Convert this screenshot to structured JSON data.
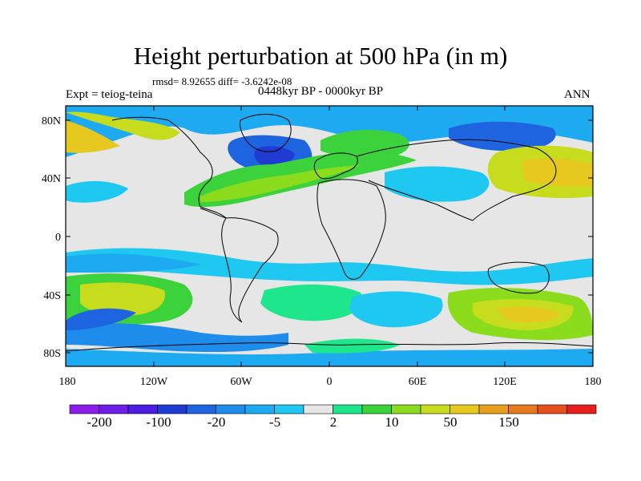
{
  "title": "Height perturbation at 500 hPa (in m)",
  "stats": "rmsd= 8.92655 diff= -3.6242e-08",
  "expt": "Expt = teiog-teina",
  "period": "0448kyr BP - 0000kyr BP",
  "season": "ANN",
  "lat_ticks": [
    "80N",
    "40N",
    "0",
    "40S",
    "80S"
  ],
  "lon_ticks": [
    "180",
    "120W",
    "60W",
    "0",
    "60E",
    "120E",
    "180"
  ],
  "colorbar": {
    "colors": [
      "#8c1eeb",
      "#6e1ee6",
      "#4b1ee1",
      "#1e3cd2",
      "#1e64e1",
      "#1e8ceb",
      "#1eaaf0",
      "#1ec8f0",
      "#e6e6e6",
      "#1ee68c",
      "#3cd23c",
      "#8cdc1e",
      "#c8dc1e",
      "#e6c81e",
      "#e6a01e",
      "#e67a1e",
      "#e6501e",
      "#e61e1e"
    ],
    "labels": [
      "-200",
      "-100",
      "-20",
      "-5",
      "2",
      "10",
      "50",
      "150"
    ]
  },
  "field_colors": {
    "neutral": "#e6e6e6",
    "pos1": "#1ee68c",
    "pos2": "#3cd23c",
    "pos3": "#8cdc1e",
    "pos4": "#c8dc1e",
    "pos5": "#e6c81e",
    "neg1": "#1ec8f0",
    "neg2": "#1eaaf0",
    "neg3": "#1e8ceb",
    "neg4": "#1e64e1",
    "neg5": "#1e3cd2"
  }
}
